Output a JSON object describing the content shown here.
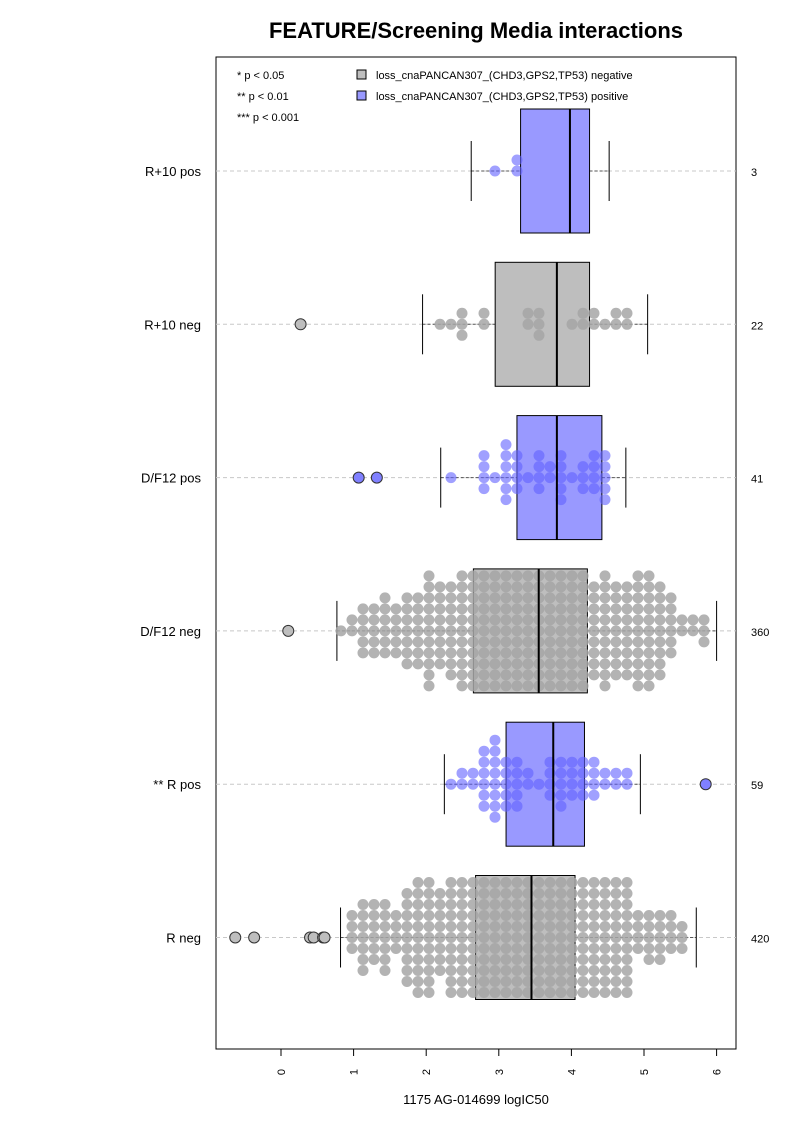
{
  "chart_data": {
    "type": "boxplot",
    "title": "FEATURE/Screening Media interactions",
    "xlabel": "1175 AG-014699 logIC50",
    "xlim": [
      -0.9,
      6.2
    ],
    "xticks": [
      0,
      1,
      2,
      3,
      4,
      5,
      6
    ],
    "grid": "dashed-horizontal",
    "significance_legend": [
      "* p < 0.05",
      "** p < 0.01",
      "*** p < 0.001"
    ],
    "legend": [
      {
        "label": "loss_cnaPANCAN307_(CHD3,GPS2,TP53) negative",
        "color": "#bebebe"
      },
      {
        "label": "loss_cnaPANCAN307_(CHD3,GPS2,TP53) positive",
        "color": "#9999ff"
      }
    ],
    "groups": [
      {
        "label": "R+10 pos",
        "n": "3",
        "status": "positive",
        "whisker_low": 2.62,
        "q1": 3.3,
        "median": 3.98,
        "q3": 4.25,
        "whisker_high": 4.52,
        "outliers": []
      },
      {
        "label": "R+10 neg",
        "n": "22",
        "status": "negative",
        "whisker_low": 1.95,
        "q1": 2.95,
        "median": 3.8,
        "q3": 4.25,
        "whisker_high": 5.05,
        "outliers": [
          0.27
        ]
      },
      {
        "label": "D/F12 pos",
        "n": "41",
        "status": "positive",
        "whisker_low": 2.2,
        "q1": 3.25,
        "median": 3.8,
        "q3": 4.42,
        "whisker_high": 4.75,
        "outliers": [
          1.07,
          1.32
        ]
      },
      {
        "label": "D/F12 neg",
        "n": "360",
        "status": "negative",
        "whisker_low": 0.77,
        "q1": 2.65,
        "median": 3.55,
        "q3": 4.22,
        "whisker_high": 6.0,
        "outliers": [
          0.1
        ]
      },
      {
        "label": "** R pos",
        "n": "59",
        "status": "positive",
        "whisker_low": 2.25,
        "q1": 3.1,
        "median": 3.75,
        "q3": 4.18,
        "whisker_high": 4.95,
        "outliers": [
          5.85
        ]
      },
      {
        "label": "R neg",
        "n": "420",
        "status": "negative",
        "whisker_low": 0.82,
        "q1": 2.68,
        "median": 3.45,
        "q3": 4.05,
        "whisker_high": 5.72,
        "outliers": [
          -0.63,
          -0.37,
          0.4,
          0.45,
          0.58,
          0.6
        ]
      }
    ]
  }
}
